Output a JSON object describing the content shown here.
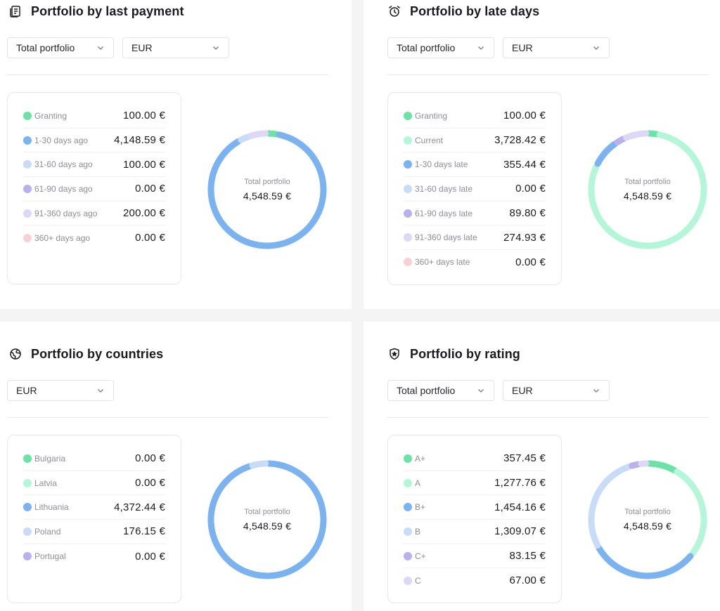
{
  "panels": [
    {
      "title": "Portfolio by last payment",
      "icon": "receipt-icon",
      "selects": [
        "Total portfolio",
        "EUR"
      ],
      "legend": [
        {
          "label": "Granting",
          "value": "100.00 €",
          "color": "#6be3a6"
        },
        {
          "label": "1-30 days ago",
          "value": "4,148.59 €",
          "color": "#7ab3f0"
        },
        {
          "label": "31-60 days ago",
          "value": "100.00 €",
          "color": "#c8dcf7"
        },
        {
          "label": "61-90 days ago",
          "value": "0.00 €",
          "color": "#b9b0ec"
        },
        {
          "label": "91-360 days ago",
          "value": "200.00 €",
          "color": "#ddd8f6"
        },
        {
          "label": "360+ days ago",
          "value": "0.00 €",
          "color": "#f6d2d6"
        }
      ],
      "donut": {
        "label": "Total portfolio",
        "total": "4,548.59 €"
      }
    },
    {
      "title": "Portfolio by late days",
      "icon": "alarm-clock-icon",
      "selects": [
        "Total portfolio",
        "EUR"
      ],
      "legend": [
        {
          "label": "Granting",
          "value": "100.00 €",
          "color": "#6be3a6"
        },
        {
          "label": "Current",
          "value": "3,728.42 €",
          "color": "#b4f6d9"
        },
        {
          "label": "1-30 days late",
          "value": "355.44 €",
          "color": "#7ab3f0"
        },
        {
          "label": "31-60 days late",
          "value": "0.00 €",
          "color": "#c8dcf7"
        },
        {
          "label": "61-90 days late",
          "value": "89.80 €",
          "color": "#b9b0ec"
        },
        {
          "label": "91-360 days late",
          "value": "274.93 €",
          "color": "#ddd8f6"
        },
        {
          "label": "360+ days late",
          "value": "0.00 €",
          "color": "#f6d2d6"
        }
      ],
      "donut": {
        "label": "Total portfolio",
        "total": "4,548.59 €"
      }
    },
    {
      "title": "Portfolio by countries",
      "icon": "globe-icon",
      "selects": [
        "EUR"
      ],
      "legend": [
        {
          "label": "Bulgaria",
          "value": "0.00 €",
          "color": "#6be3a6"
        },
        {
          "label": "Latvia",
          "value": "0.00 €",
          "color": "#b4f6d9"
        },
        {
          "label": "Lithuania",
          "value": "4,372.44 €",
          "color": "#7ab3f0"
        },
        {
          "label": "Poland",
          "value": "176.15 €",
          "color": "#c8dcf7"
        },
        {
          "label": "Portugal",
          "value": "0.00 €",
          "color": "#b9b0ec"
        }
      ],
      "donut": {
        "label": "Total portfolio",
        "total": "4,548.59 €"
      }
    },
    {
      "title": "Portfolio by rating",
      "icon": "star-shield-icon",
      "selects": [
        "Total portfolio",
        "EUR"
      ],
      "legend": [
        {
          "label": "A+",
          "value": "357.45 €",
          "color": "#6be3a6"
        },
        {
          "label": "A",
          "value": "1,277.76 €",
          "color": "#b4f6d9"
        },
        {
          "label": "B+",
          "value": "1,454.16 €",
          "color": "#7ab3f0"
        },
        {
          "label": "B",
          "value": "1,309.07 €",
          "color": "#c8dcf7"
        },
        {
          "label": "C+",
          "value": "83.15 €",
          "color": "#b9b0ec"
        },
        {
          "label": "C",
          "value": "67.00 €",
          "color": "#ddd8f6"
        }
      ],
      "donut": {
        "label": "Total portfolio",
        "total": "4,548.59 €"
      }
    }
  ]
}
